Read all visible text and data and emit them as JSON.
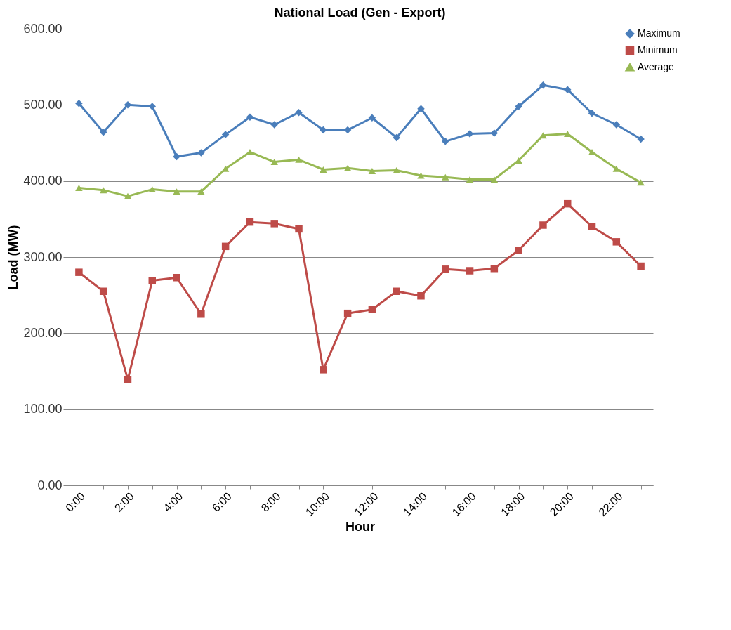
{
  "chart_data": {
    "type": "line",
    "title": "National Load (Gen - Export)",
    "xlabel": "Hour",
    "ylabel": "Load (MW)",
    "categories": [
      "0:00",
      null,
      "2:00",
      null,
      "4:00",
      null,
      "6:00",
      null,
      "8:00",
      null,
      "10:00",
      null,
      "12:00",
      null,
      "14:00",
      null,
      "16:00",
      null,
      "18:00",
      null,
      "20:00",
      null,
      "22:00",
      null
    ],
    "series": [
      {
        "name": "Maximum",
        "color": "#4a7ebb",
        "marker": "diamond",
        "values": [
          502,
          464,
          500,
          498,
          432,
          437,
          461,
          484,
          474,
          490,
          467,
          467,
          483,
          457,
          495,
          452,
          462,
          463,
          498,
          526,
          520,
          489,
          474,
          455
        ]
      },
      {
        "name": "Minimum",
        "color": "#be4b48",
        "marker": "square",
        "values": [
          280,
          255,
          139,
          269,
          273,
          225,
          314,
          346,
          344,
          337,
          152,
          226,
          231,
          255,
          249,
          284,
          282,
          285,
          309,
          342,
          370,
          340,
          320,
          288
        ]
      },
      {
        "name": "Average",
        "color": "#98b954",
        "marker": "triangle",
        "values": [
          391,
          388,
          380,
          389,
          386,
          386,
          416,
          438,
          425,
          428,
          415,
          417,
          413,
          414,
          407,
          405,
          402,
          402,
          427,
          460,
          462,
          438,
          416,
          398
        ]
      }
    ],
    "ylim": [
      0,
      600
    ],
    "yticks": [
      {
        "value": 0,
        "label": "0.00"
      },
      {
        "value": 100,
        "label": "100.00"
      },
      {
        "value": 200,
        "label": "200.00"
      },
      {
        "value": 300,
        "label": "300.00"
      },
      {
        "value": 400,
        "label": "400.00"
      },
      {
        "value": 500,
        "label": "500.00"
      },
      {
        "value": 600,
        "label": "600.00"
      }
    ],
    "grid": "y",
    "legend": "right"
  }
}
